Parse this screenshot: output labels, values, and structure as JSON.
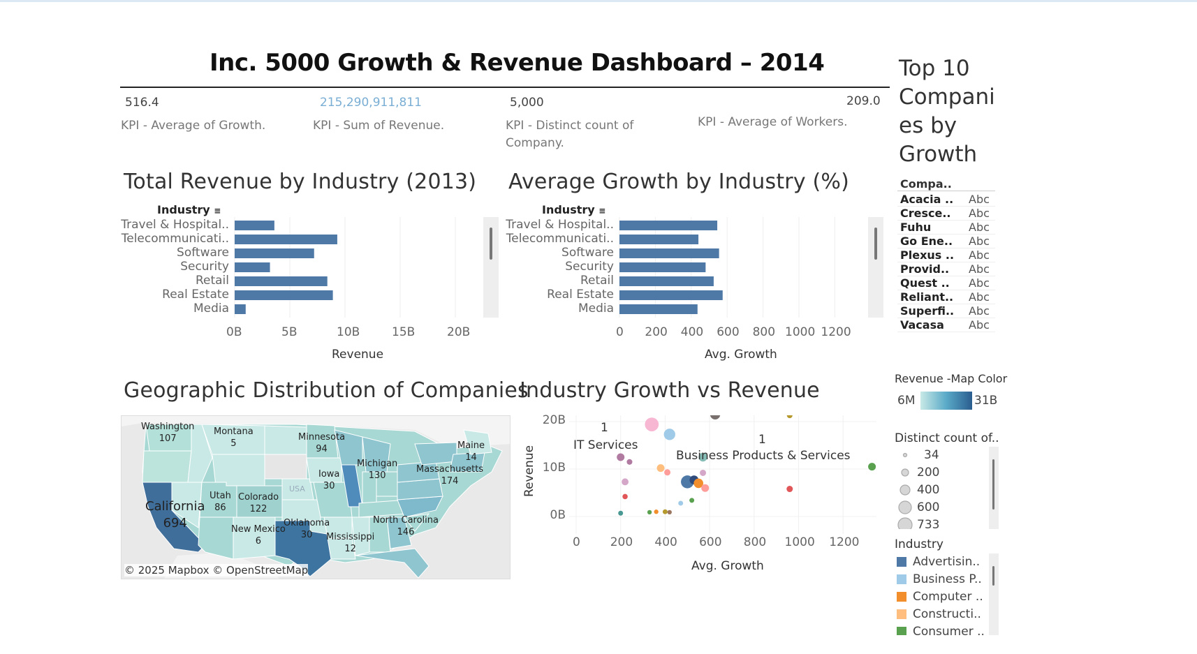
{
  "title": "Inc. 5000 Growth & Revenue Dashboard –  2014",
  "kpis": [
    {
      "value": "516.4",
      "label": "KPI - Average of Growth."
    },
    {
      "value": "215,290,911,811",
      "label": "KPI - Sum of Revenue."
    },
    {
      "value": "5,000",
      "label": "KPI - Distinct count of Company."
    },
    {
      "value": "209.0",
      "label": "KPI - Average of Workers."
    }
  ],
  "revenue_chart": {
    "title": "Total Revenue by Industry (2013)",
    "header": "Industry",
    "xlabel": "Revenue",
    "ticks": [
      "0B",
      "5B",
      "10B",
      "15B",
      "20B"
    ]
  },
  "growth_chart": {
    "title": "Average Growth by Industry (%)",
    "header": "Industry",
    "xlabel": "Avg. Growth",
    "ticks": [
      "0",
      "200",
      "400",
      "600",
      "800",
      "1000",
      "1200"
    ]
  },
  "map": {
    "title": "Geographic Distribution of Companies",
    "attribution": "© 2025 Mapbox © OpenStreetMap",
    "labels": [
      {
        "name": "Washington",
        "count": "107"
      },
      {
        "name": "Montana",
        "count": "5"
      },
      {
        "name": "Minnesota",
        "count": "94"
      },
      {
        "name": "Maine",
        "count": "14"
      },
      {
        "name": "Michigan",
        "count": "130"
      },
      {
        "name": "Massachusetts",
        "count": "174"
      },
      {
        "name": "Iowa",
        "count": "30"
      },
      {
        "name": "Utah",
        "count": "86"
      },
      {
        "name": "Colorado",
        "count": "122"
      },
      {
        "name": "California",
        "count": "694"
      },
      {
        "name": "New Mexico",
        "count": "6"
      },
      {
        "name": "Oklahoma",
        "count": "30"
      },
      {
        "name": "Mississippi",
        "count": "12"
      },
      {
        "name": "North Carolina",
        "count": "146"
      }
    ],
    "usa_watermark": "USA"
  },
  "scatter": {
    "title": "Industry Growth vs Revenue",
    "xlabel": "Avg. Growth",
    "ylabel": "Revenue",
    "xticks": [
      "0",
      "200",
      "400",
      "600",
      "800",
      "1000",
      "1200"
    ],
    "yticks": [
      "20B",
      "10B",
      "0B"
    ],
    "annotations": [
      {
        "count": "1",
        "label": "IT Services"
      },
      {
        "count": "1",
        "label": "Business Products & Services"
      }
    ]
  },
  "top10": {
    "title": "Top 10 Compani es by Growth",
    "column_header": "Compa..",
    "rows": [
      {
        "company": "Acacia ..",
        "value": "Abc"
      },
      {
        "company": "Cresce..",
        "value": "Abc"
      },
      {
        "company": "Fuhu",
        "value": "Abc"
      },
      {
        "company": "Go Ene..",
        "value": "Abc"
      },
      {
        "company": "Plexus ..",
        "value": "Abc"
      },
      {
        "company": "Provid..",
        "value": "Abc"
      },
      {
        "company": "Quest ..",
        "value": "Abc"
      },
      {
        "company": "Reliant..",
        "value": "Abc"
      },
      {
        "company": "Superfi..",
        "value": "Abc"
      },
      {
        "company": "Vacasa",
        "value": "Abc"
      }
    ]
  },
  "color_legend": {
    "title": "Revenue -Map Color",
    "min": "6M",
    "max": "31B",
    "gradient_start": "#c8e9e6",
    "gradient_end": "#2a5d8f"
  },
  "size_legend": {
    "title": "Distinct count of..",
    "values": [
      "34",
      "200",
      "400",
      "600",
      "733"
    ]
  },
  "industry_legend": {
    "title": "Industry",
    "items": [
      {
        "label": "Advertisin..",
        "color": "#4e79a7"
      },
      {
        "label": "Business P..",
        "color": "#a0cbe8"
      },
      {
        "label": "Computer ..",
        "color": "#f28e2b"
      },
      {
        "label": "Constructi..",
        "color": "#ffbe7d"
      },
      {
        "label": "Consumer ..",
        "color": "#59a14f"
      }
    ]
  },
  "chart_data": [
    {
      "type": "bar",
      "title": "Total Revenue by Industry (2013)",
      "xlabel": "Revenue",
      "ylabel": "Industry",
      "orientation": "horizontal",
      "unit": "B",
      "categories": [
        "Travel & Hospital..",
        "Telecommunicati..",
        "Software",
        "Security",
        "Retail",
        "Real Estate",
        "Media"
      ],
      "values": [
        3.6,
        9.3,
        7.2,
        3.2,
        8.4,
        8.9,
        1.0
      ],
      "xlim": [
        0,
        22
      ],
      "grid": true,
      "bar_color": "#4e79a7"
    },
    {
      "type": "bar",
      "title": "Average Growth by Industry (%)",
      "xlabel": "Avg. Growth",
      "ylabel": "Industry",
      "orientation": "horizontal",
      "categories": [
        "Travel & Hospital..",
        "Telecommunicati..",
        "Software",
        "Security",
        "Retail",
        "Real Estate",
        "Media"
      ],
      "values": [
        545,
        440,
        555,
        480,
        525,
        575,
        435
      ],
      "xlim": [
        0,
        1300
      ],
      "grid": true,
      "bar_color": "#4e79a7"
    },
    {
      "type": "scatter",
      "title": "Industry Growth vs Revenue",
      "xlabel": "Avg. Growth",
      "ylabel": "Revenue (B)",
      "xlim": [
        0,
        1400
      ],
      "ylim": [
        -2,
        23
      ],
      "points": [
        {
          "x": 340,
          "y": 19.4,
          "count": 480,
          "color": "#f7b6d2"
        },
        {
          "x": 420,
          "y": 17.3,
          "count": 330,
          "color": "#a0cbe8"
        },
        {
          "x": 625,
          "y": 21.5,
          "count": 260,
          "color": "#79706e"
        },
        {
          "x": 960,
          "y": 21.3,
          "count": 80,
          "color": "#b6992d"
        },
        {
          "x": 200,
          "y": 12.5,
          "count": 150,
          "color": "#b07aa1"
        },
        {
          "x": 240,
          "y": 11.5,
          "count": 80,
          "color": "#b07aa1"
        },
        {
          "x": 570,
          "y": 12.5,
          "count": 190,
          "color": "#86bcb6"
        },
        {
          "x": 1330,
          "y": 10.5,
          "count": 150,
          "color": "#59a14f"
        },
        {
          "x": 380,
          "y": 10.2,
          "count": 150,
          "color": "#ffbe7d"
        },
        {
          "x": 410,
          "y": 9.3,
          "count": 100,
          "color": "#ff9d9a"
        },
        {
          "x": 570,
          "y": 9.2,
          "count": 100,
          "color": "#d4a6c8"
        },
        {
          "x": 500,
          "y": 7.3,
          "count": 420,
          "color": "#4e79a7"
        },
        {
          "x": 530,
          "y": 7.7,
          "count": 200,
          "color": "#2f4b7c"
        },
        {
          "x": 550,
          "y": 7.0,
          "count": 230,
          "color": "#f28e2b"
        },
        {
          "x": 580,
          "y": 6.0,
          "count": 150,
          "color": "#ff9d9a"
        },
        {
          "x": 960,
          "y": 5.8,
          "count": 100,
          "color": "#e15759"
        },
        {
          "x": 220,
          "y": 7.3,
          "count": 120,
          "color": "#d4a6c8"
        },
        {
          "x": 220,
          "y": 4.2,
          "count": 70,
          "color": "#e15759"
        },
        {
          "x": 520,
          "y": 3.4,
          "count": 60,
          "color": "#59a14f"
        },
        {
          "x": 470,
          "y": 2.8,
          "count": 60,
          "color": "#a0cbe8"
        },
        {
          "x": 200,
          "y": 0.7,
          "count": 60,
          "color": "#499894"
        },
        {
          "x": 330,
          "y": 0.9,
          "count": 50,
          "color": "#59a14f"
        },
        {
          "x": 360,
          "y": 1.0,
          "count": 50,
          "color": "#f28e2b"
        },
        {
          "x": 400,
          "y": 1.0,
          "count": 60,
          "color": "#b6992d"
        },
        {
          "x": 420,
          "y": 0.9,
          "count": 50,
          "color": "#9d7660"
        }
      ]
    }
  ]
}
